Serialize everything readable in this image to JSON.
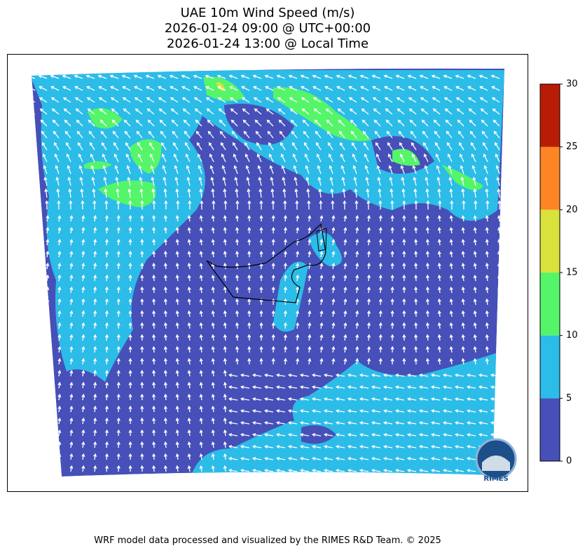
{
  "map": {
    "title": [
      "UAE 10m Wind Speed (m/s)",
      "2026-01-24 09:00 @ UTC+00:00",
      "2026-01-24 13:00 @ Local Time"
    ],
    "colorbar": {
      "ticks": [
        0,
        5,
        10,
        15,
        20,
        25,
        30
      ],
      "colors": [
        "#4650b8",
        "#2cbce8",
        "#55f56a",
        "#d8e23a",
        "#fd8523",
        "#b91c05"
      ]
    },
    "logo": "RIMES",
    "footer": "WRF model data processed and visualized by the RIMES R&D Team. © 2025"
  }
}
